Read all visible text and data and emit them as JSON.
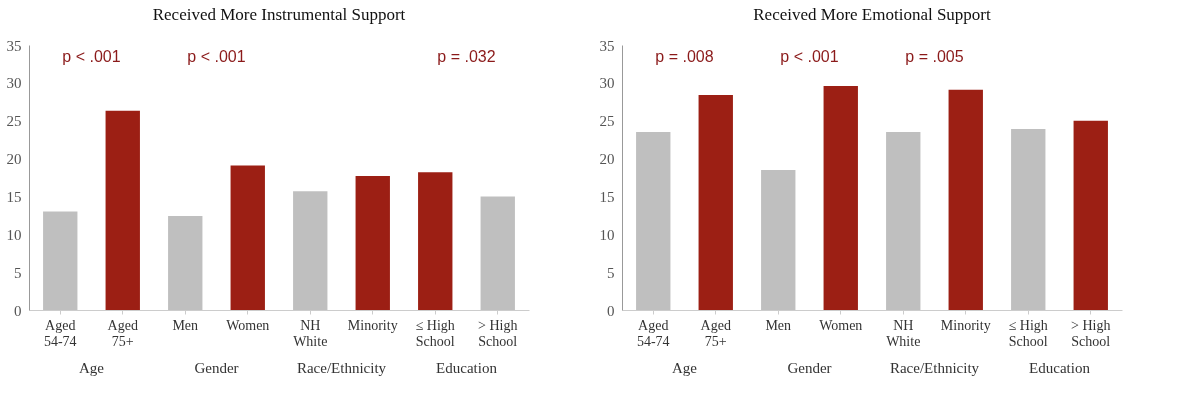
{
  "chart_data": [
    {
      "type": "bar",
      "title": "Received More Instrumental Support",
      "categories": [
        "Aged 54-74",
        "Aged 75+",
        "Men",
        "Women",
        "NH White",
        "Minority",
        "≤ High School",
        "> High School"
      ],
      "values": [
        13.0,
        26.3,
        12.4,
        19.1,
        15.7,
        17.7,
        18.2,
        15.0
      ],
      "colors": [
        "#bfbfbf",
        "#9c1f14",
        "#bfbfbf",
        "#9c1f14",
        "#bfbfbf",
        "#9c1f14",
        "#9c1f14",
        "#bfbfbf"
      ],
      "ylim": [
        0,
        35
      ],
      "yticks": [
        0,
        5,
        10,
        15,
        20,
        25,
        30,
        35
      ],
      "grid": false,
      "annotations": [
        "p < .001",
        "p < .001",
        "p = .032",
        "Age",
        "Gender",
        "Race/Ethnicity",
        "Education"
      ]
    },
    {
      "type": "bar",
      "title": "Received More Emotional Support",
      "categories": [
        "Aged 54-74",
        "Aged 75+",
        "Men",
        "Women",
        "NH White",
        "Minority",
        "≤ High School",
        "> High School"
      ],
      "values": [
        23.5,
        28.4,
        18.5,
        29.6,
        23.5,
        29.1,
        23.9,
        25.0
      ],
      "colors": [
        "#bfbfbf",
        "#9c1f14",
        "#bfbfbf",
        "#9c1f14",
        "#bfbfbf",
        "#9c1f14",
        "#bfbfbf",
        "#9c1f14"
      ],
      "ylim": [
        0,
        35
      ],
      "yticks": [
        0,
        5,
        10,
        15,
        20,
        25,
        30,
        35
      ],
      "grid": false,
      "annotations": [
        "p = .008",
        "p < .001",
        "p = .005",
        "Age",
        "Gender",
        "Race/Ethnicity",
        "Education"
      ]
    }
  ]
}
